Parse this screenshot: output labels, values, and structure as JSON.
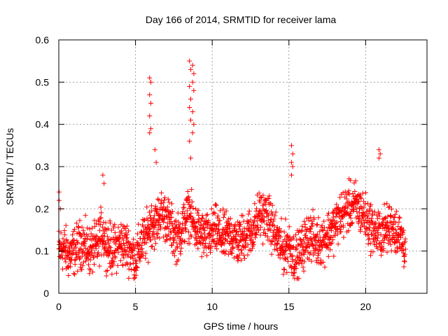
{
  "chart_data": {
    "type": "scatter",
    "title": "Day 166 of 2014, SRMTID for receiver lama",
    "xlabel": "GPS time / hours",
    "ylabel": "SRMTID / TECUs",
    "xlim": [
      0,
      24
    ],
    "ylim": [
      0,
      0.6
    ],
    "grid": true,
    "marker": "+",
    "x_ticks": [
      0,
      5,
      10,
      15,
      20
    ],
    "y_ticks": [
      0,
      0.1,
      0.2,
      0.3,
      0.4,
      0.5,
      0.6
    ],
    "x_tick_labels": [
      "0",
      "5",
      "10",
      "15",
      "20"
    ],
    "y_tick_labels": [
      "0",
      "0.1",
      "0.2",
      "0.3",
      "0.4",
      "0.5",
      "0.6"
    ],
    "series": [
      {
        "name": "SRMTID",
        "color": "#ff0000",
        "anchors_x": [
          0.0,
          0.3,
          0.6,
          1.0,
          1.5,
          2.0,
          2.5,
          2.8,
          3.1,
          3.5,
          4.0,
          4.5,
          5.0,
          5.4,
          5.8,
          6.0,
          6.3,
          6.6,
          7.0,
          7.5,
          7.8,
          8.2,
          8.5,
          8.8,
          9.2,
          9.7,
          10.2,
          10.7,
          11.2,
          11.7,
          12.2,
          12.7,
          13.1,
          13.6,
          14.1,
          14.6,
          15.0,
          15.4,
          15.8,
          16.3,
          16.8,
          17.3,
          17.8,
          18.3,
          18.8,
          19.3,
          19.8,
          20.3,
          20.8,
          21.3,
          21.8,
          22.3,
          22.6
        ],
        "anchors_y": [
          0.1,
          0.11,
          0.09,
          0.1,
          0.12,
          0.1,
          0.11,
          0.15,
          0.12,
          0.1,
          0.12,
          0.11,
          0.08,
          0.12,
          0.14,
          0.17,
          0.16,
          0.19,
          0.18,
          0.14,
          0.13,
          0.17,
          0.19,
          0.16,
          0.14,
          0.13,
          0.15,
          0.13,
          0.14,
          0.12,
          0.14,
          0.15,
          0.19,
          0.18,
          0.14,
          0.1,
          0.12,
          0.08,
          0.1,
          0.14,
          0.12,
          0.13,
          0.15,
          0.18,
          0.2,
          0.21,
          0.19,
          0.16,
          0.14,
          0.15,
          0.16,
          0.13,
          0.11
        ],
        "spikes": [
          {
            "x": 0.05,
            "points": [
              0.24,
              0.2,
              0.22
            ]
          },
          {
            "x": 2.9,
            "points": [
              0.28,
              0.26
            ]
          },
          {
            "x": 5.95,
            "points": [
              0.51,
              0.5,
              0.47,
              0.45,
              0.42,
              0.39,
              0.38
            ]
          },
          {
            "x": 6.3,
            "points": [
              0.34,
              0.31
            ]
          },
          {
            "x": 8.55,
            "points": [
              0.55,
              0.53,
              0.49,
              0.46,
              0.44,
              0.41,
              0.36,
              0.32
            ]
          },
          {
            "x": 8.75,
            "points": [
              0.54,
              0.52,
              0.5,
              0.48,
              0.43,
              0.4,
              0.38
            ]
          },
          {
            "x": 15.2,
            "points": [
              0.35,
              0.33,
              0.31,
              0.3,
              0.28
            ]
          },
          {
            "x": 20.9,
            "points": [
              0.34,
              0.33,
              0.32
            ]
          }
        ]
      }
    ]
  }
}
